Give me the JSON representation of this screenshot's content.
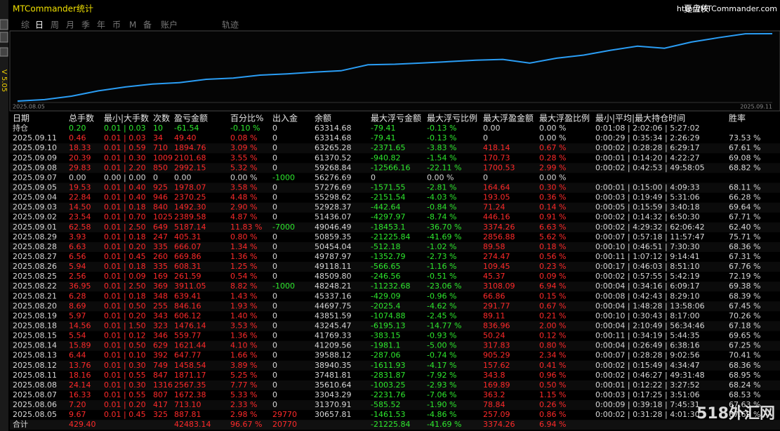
{
  "header": {
    "title": "MTCommander统计",
    "brand": "夏盘侠",
    "url": "http://MTCommander.com"
  },
  "side": {
    "version": "V 5.05"
  },
  "tabs": [
    "综",
    "日",
    "周",
    "月",
    "季",
    "年",
    "币",
    "M",
    "备",
    "账户",
    "轨迹"
  ],
  "active_tab": 1,
  "equity_chart": {
    "x_start": "2025.08.05",
    "x_end": "2025.09.11"
  },
  "table": {
    "header": [
      "日期",
      "总手数",
      "最小|大手数",
      "次数",
      "盈亏金额",
      "百分比%",
      "出入金",
      "余额",
      "最大浮亏金额",
      "最大浮亏比例",
      "最大浮盈金额",
      "最大浮盈比例",
      "最小|平均|最大持仓时间",
      "胜率"
    ],
    "holding": [
      "持仓",
      "0.20",
      "0.01 | 0.03",
      "10",
      "-61.54",
      "-0.10 %",
      "0",
      "63314.68",
      "-79.41",
      "-0.13 %",
      "0.00",
      "0.00 %",
      "0:01:08 | 2:02:06 | 5:27:02",
      null
    ],
    "rows": [
      [
        "2025.09.11",
        "0.46",
        "0.01 | 0.03",
        "34",
        "49.40",
        "0.08 %",
        "0",
        "63314.68",
        "-79.41",
        "-0.13 %",
        "0",
        "0.00 %",
        "0:00:29 | 0:35:34 | 2:26:29",
        "73.53 %"
      ],
      [
        "2025.09.10",
        "18.33",
        "0.01 | 0.59",
        "710",
        "1894.76",
        "3.09 %",
        "0",
        "63265.28",
        "-2371.65",
        "-3.83 %",
        "418.14",
        "0.67 %",
        "0:00:02 | 0:28:28 | 6:29:17",
        "67.61 %"
      ],
      [
        "2025.09.09",
        "20.39",
        "0.01 | 0.30",
        "1009",
        "2101.68",
        "3.55 %",
        "0",
        "61370.52",
        "-940.82",
        "-1.54 %",
        "170.73",
        "0.28 %",
        "0:00:01 | 0:14:20 | 4:22:27",
        "69.08 %"
      ],
      [
        "2025.09.08",
        "29.83",
        "0.01 | 2.20",
        "850",
        "2992.15",
        "5.32 %",
        "0",
        "59268.84",
        "-12566.16",
        "-22.11 %",
        "1700.53",
        "2.99 %",
        "0:00:02 | 0:42:53 | 49:58:05",
        "68.82 %"
      ],
      [
        "2025.09.07",
        "0.00",
        "0.00 | 0.00",
        "0",
        "0.00",
        "0.00 %",
        "-1000",
        "56276.69",
        "0",
        "0.00 %",
        "0",
        "0.00 %",
        null,
        null
      ],
      [
        "2025.09.05",
        "19.53",
        "0.01 | 0.40",
        "925",
        "1978.07",
        "3.58 %",
        "0",
        "57276.69",
        "-1571.55",
        "-2.81 %",
        "164.64",
        "0.30 %",
        "0:00:01 | 0:15:00 | 4:09:33",
        "68.11 %"
      ],
      [
        "2025.09.04",
        "22.84",
        "0.01 | 0.40",
        "946",
        "2370.25",
        "4.48 %",
        "0",
        "55298.62",
        "-2151.54",
        "-4.03 %",
        "193.05",
        "0.36 %",
        "0:00:03 | 0:19:49 | 5:31:06",
        "66.28 %"
      ],
      [
        "2025.09.03",
        "14.50",
        "0.01 | 0.18",
        "840",
        "1492.30",
        "2.90 %",
        "0",
        "52928.37",
        "-442.64",
        "-0.84 %",
        "71.24",
        "0.14 %",
        "0:00:05 | 0:15:59 | 3:40:18",
        "69.64 %"
      ],
      [
        "2025.09.02",
        "23.54",
        "0.01 | 0.70",
        "1025",
        "2389.58",
        "4.87 %",
        "0",
        "51436.07",
        "-4297.97",
        "-8.74 %",
        "446.16",
        "0.91 %",
        "0:00:02 | 0:14:32 | 6:50:30",
        "67.71 %"
      ],
      [
        "2025.09.01",
        "62.58",
        "0.01 | 2.50",
        "649",
        "5187.14",
        "11.83 %",
        "-7000",
        "49046.49",
        "-18453.1",
        "-36.70 %",
        "3374.26",
        "6.63 %",
        "0:00:02 | 4:29:32 | 62:06:42",
        "62.40 %"
      ],
      [
        "2025.08.29",
        "3.93",
        "0.01 | 0.18",
        "247",
        "405.31",
        "0.80 %",
        "0",
        "50859.35",
        "-21225.84",
        "-41.69 %",
        "2856.88",
        "5.62 %",
        "0:00:07 | 0:57:18 | 11:57:47",
        "75.71 %"
      ],
      [
        "2025.08.28",
        "6.63",
        "0.01 | 0.20",
        "335",
        "666.07",
        "1.34 %",
        "0",
        "50454.04",
        "-512.18",
        "-1.02 %",
        "89.58",
        "0.18 %",
        "0:00:10 | 0:46:51 | 7:30:30",
        "68.36 %"
      ],
      [
        "2025.08.27",
        "6.56",
        "0.01 | 0.45",
        "260",
        "669.86",
        "1.36 %",
        "0",
        "49787.97",
        "-1352.79",
        "-2.73 %",
        "274.47",
        "0.56 %",
        "0:00:11 | 1:07:12 | 9:14:41",
        "67.31 %"
      ],
      [
        "2025.08.26",
        "5.94",
        "0.01 | 0.18",
        "335",
        "608.31",
        "1.25 %",
        "0",
        "49118.11",
        "-566.65",
        "-1.16 %",
        "109.45",
        "0.23 %",
        "0:00:17 | 0:46:03 | 8:51:10",
        "67.76 %"
      ],
      [
        "2025.08.25",
        "2.56",
        "0.01 | 0.09",
        "169",
        "261.59",
        "0.54 %",
        "0",
        "48509.80",
        "-246.56",
        "-0.51 %",
        "45.37",
        "0.09 %",
        "0:00:02 | 0:57:55 | 5:42:19",
        "72.19 %"
      ],
      [
        "2025.08.22",
        "36.95",
        "0.01 | 2.50",
        "369",
        "3911.05",
        "8.82 %",
        "-1000",
        "48248.21",
        "-11232.68",
        "-23.06 %",
        "3108.09",
        "6.94 %",
        "0:00:04 | 0:34:16 | 6:09:17",
        "69.38 %"
      ],
      [
        "2025.08.21",
        "6.28",
        "0.01 | 0.18",
        "348",
        "639.41",
        "1.43 %",
        "0",
        "45337.16",
        "-429.09",
        "-0.96 %",
        "66.86",
        "0.15 %",
        "0:00:08 | 0:42:43 | 8:29:10",
        "68.39 %"
      ],
      [
        "2025.08.20",
        "8.69",
        "0.01 | 0.50",
        "255",
        "846.16",
        "1.93 %",
        "0",
        "44697.75",
        "-2025.4",
        "-4.62 %",
        "291.77",
        "0.67 %",
        "0:00:04 | 1:48:28 | 13:58:06",
        "67.45 %"
      ],
      [
        "2025.08.19",
        "5.97",
        "0.01 | 0.20",
        "343",
        "606.12",
        "1.40 %",
        "0",
        "43851.59",
        "-1074.88",
        "-2.45 %",
        "89.11",
        "0.21 %",
        "0:00:10 | 0:30:43 | 8:17:00",
        "70.26 %"
      ],
      [
        "2025.08.18",
        "14.56",
        "0.01 | 1.50",
        "323",
        "1476.14",
        "3.53 %",
        "0",
        "43245.47",
        "-6195.13",
        "-14.77 %",
        "836.96",
        "2.00 %",
        "0:00:04 | 2:10:49 | 56:34:46",
        "67.18 %"
      ],
      [
        "2025.08.15",
        "5.54",
        "0.01 | 0.12",
        "346",
        "559.77",
        "1.36 %",
        "0",
        "41769.33",
        "-383.15",
        "-0.93 %",
        "50.24",
        "0.12 %",
        "0:00:11 | 0:34:19 | 5:44:35",
        "69.65 %"
      ],
      [
        "2025.08.14",
        "15.89",
        "0.01 | 0.50",
        "629",
        "1621.44",
        "4.10 %",
        "0",
        "41209.56",
        "-1981.1",
        "-5.00 %",
        "317.83",
        "0.80 %",
        "0:00:04 | 0:26:49 | 6:38:16",
        "67.25 %"
      ],
      [
        "2025.08.13",
        "6.44",
        "0.01 | 0.10",
        "392",
        "647.77",
        "1.66 %",
        "0",
        "39588.12",
        "-287.06",
        "-0.74 %",
        "905.29",
        "2.34 %",
        "0:00:07 | 0:28:28 | 9:02:56",
        "70.41 %"
      ],
      [
        "2025.08.12",
        "13.76",
        "0.01 | 0.30",
        "749",
        "1458.54",
        "3.89 %",
        "0",
        "38940.35",
        "-1611.93",
        "-4.17 %",
        "157.62",
        "0.41 %",
        "0:00:02 | 0:15:49 | 4:34:47",
        "68.36 %"
      ],
      [
        "2025.08.11",
        "18.16",
        "0.01 | 0.55",
        "847",
        "1871.17",
        "5.25 %",
        "0",
        "37481.81",
        "-2831.87",
        "-7.92 %",
        "343.8",
        "0.96 %",
        "0:00:02 | 0:46:27 | 49:31:48",
        "68.95 %"
      ],
      [
        "2025.08.08",
        "24.14",
        "0.01 | 0.30",
        "1316",
        "2567.35",
        "7.77 %",
        "0",
        "35610.64",
        "-1003.25",
        "-2.93 %",
        "169.89",
        "0.50 %",
        "0:00:01 | 0:12:22 | 3:27:52",
        "68.24 %"
      ],
      [
        "2025.08.07",
        "16.33",
        "0.01 | 0.55",
        "807",
        "1672.38",
        "5.33 %",
        "0",
        "33043.29",
        "-2231.76",
        "-7.06 %",
        "363.2",
        "1.15 %",
        "0:00:03 | 0:17:25 | 3:51:06",
        "68.53 %"
      ],
      [
        "2025.08.06",
        "7.20",
        "0.01 | 0.20",
        "417",
        "713.10",
        "2.33 %",
        "0",
        "31370.91",
        "-585.52",
        "-1.90 %",
        "78.84",
        "0.26 %",
        "0:00:09 | 0:39:18 | 7:45:31",
        "67.63 %"
      ],
      [
        "2025.08.05",
        "9.67",
        "0.01 | 0.45",
        "325",
        "887.81",
        "2.98 %",
        "29770",
        "30657.81",
        "-1461.53",
        "-4.86 %",
        "257.09",
        "0.86 %",
        "0:00:02 | 0:31:28 | 4:01:30",
        "67.69 %"
      ]
    ],
    "total": [
      "合计",
      "429.40",
      null,
      null,
      "42483.14",
      "96.67 %",
      "20770",
      null,
      "-21225.84",
      "-41.69 %",
      "3374.26",
      "6.94 %",
      null,
      null
    ]
  },
  "watermark": "518外汇网"
}
